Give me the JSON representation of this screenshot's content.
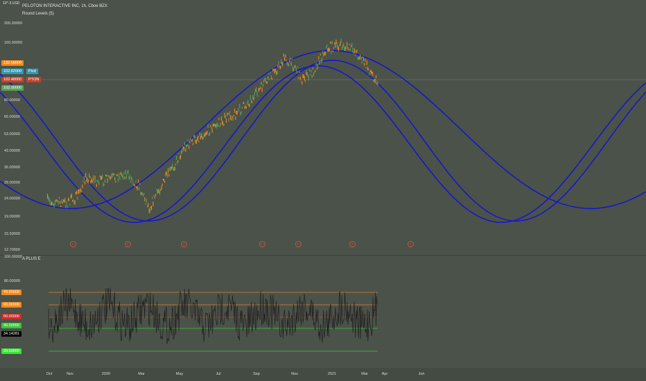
{
  "top_corner_label": "10^-3 USD",
  "header": {
    "symbol_line": "PELOTON INTERACTIVE INC, 1h, Cboe BZX",
    "indicator_line": "Round Levels (5)"
  },
  "main_axis": {
    "ticks": [
      "200.00000",
      "160.00000",
      "80.00000",
      "65.00000",
      "53.00000",
      "43.00000",
      "35.00000",
      "29.00000",
      "24.00000",
      "19.00000",
      "15.50000",
      "12.70000"
    ]
  },
  "price_tags": [
    {
      "value": "132.00000",
      "name": "",
      "color": "#f28a1e"
    },
    {
      "value": "102.82000",
      "name": "Pivd",
      "color": "#2f9bb6"
    },
    {
      "value": "102.48000",
      "name": "PTON",
      "color": "#c8402a"
    },
    {
      "value": "102.00000",
      "name": "",
      "color": "#5aa05a"
    }
  ],
  "event_markers": [
    "E",
    "E",
    "E",
    "E",
    "E",
    "E",
    "E"
  ],
  "sub_panel": {
    "title": "A PLUS E",
    "ticks": [
      "100.00000",
      "80.00000"
    ],
    "level_tags": [
      {
        "value": "70.00000",
        "color": "#f28a1e"
      },
      {
        "value": "60.00000",
        "color": "#f28a1e"
      },
      {
        "value": "50.00000",
        "color": "#c8302a"
      },
      {
        "value": "40.00000",
        "color": "#37c837"
      },
      {
        "value": "34.14281",
        "color": "#000000"
      },
      {
        "value": "20.00000",
        "color": "#37e637"
      }
    ]
  },
  "x_axis": {
    "labels": [
      "Oct",
      "Nov",
      "2020",
      "Mar",
      "May",
      "Jul",
      "Sep",
      "Nov",
      "2021",
      "Mar",
      "Apr",
      "Jun"
    ]
  },
  "colors": {
    "background": "#4b5249",
    "sine_waves": "#1414d2",
    "candle_up": "#5aa05a",
    "candle_down": "#f28a1e",
    "oscillator": "#1e1e1e"
  }
}
